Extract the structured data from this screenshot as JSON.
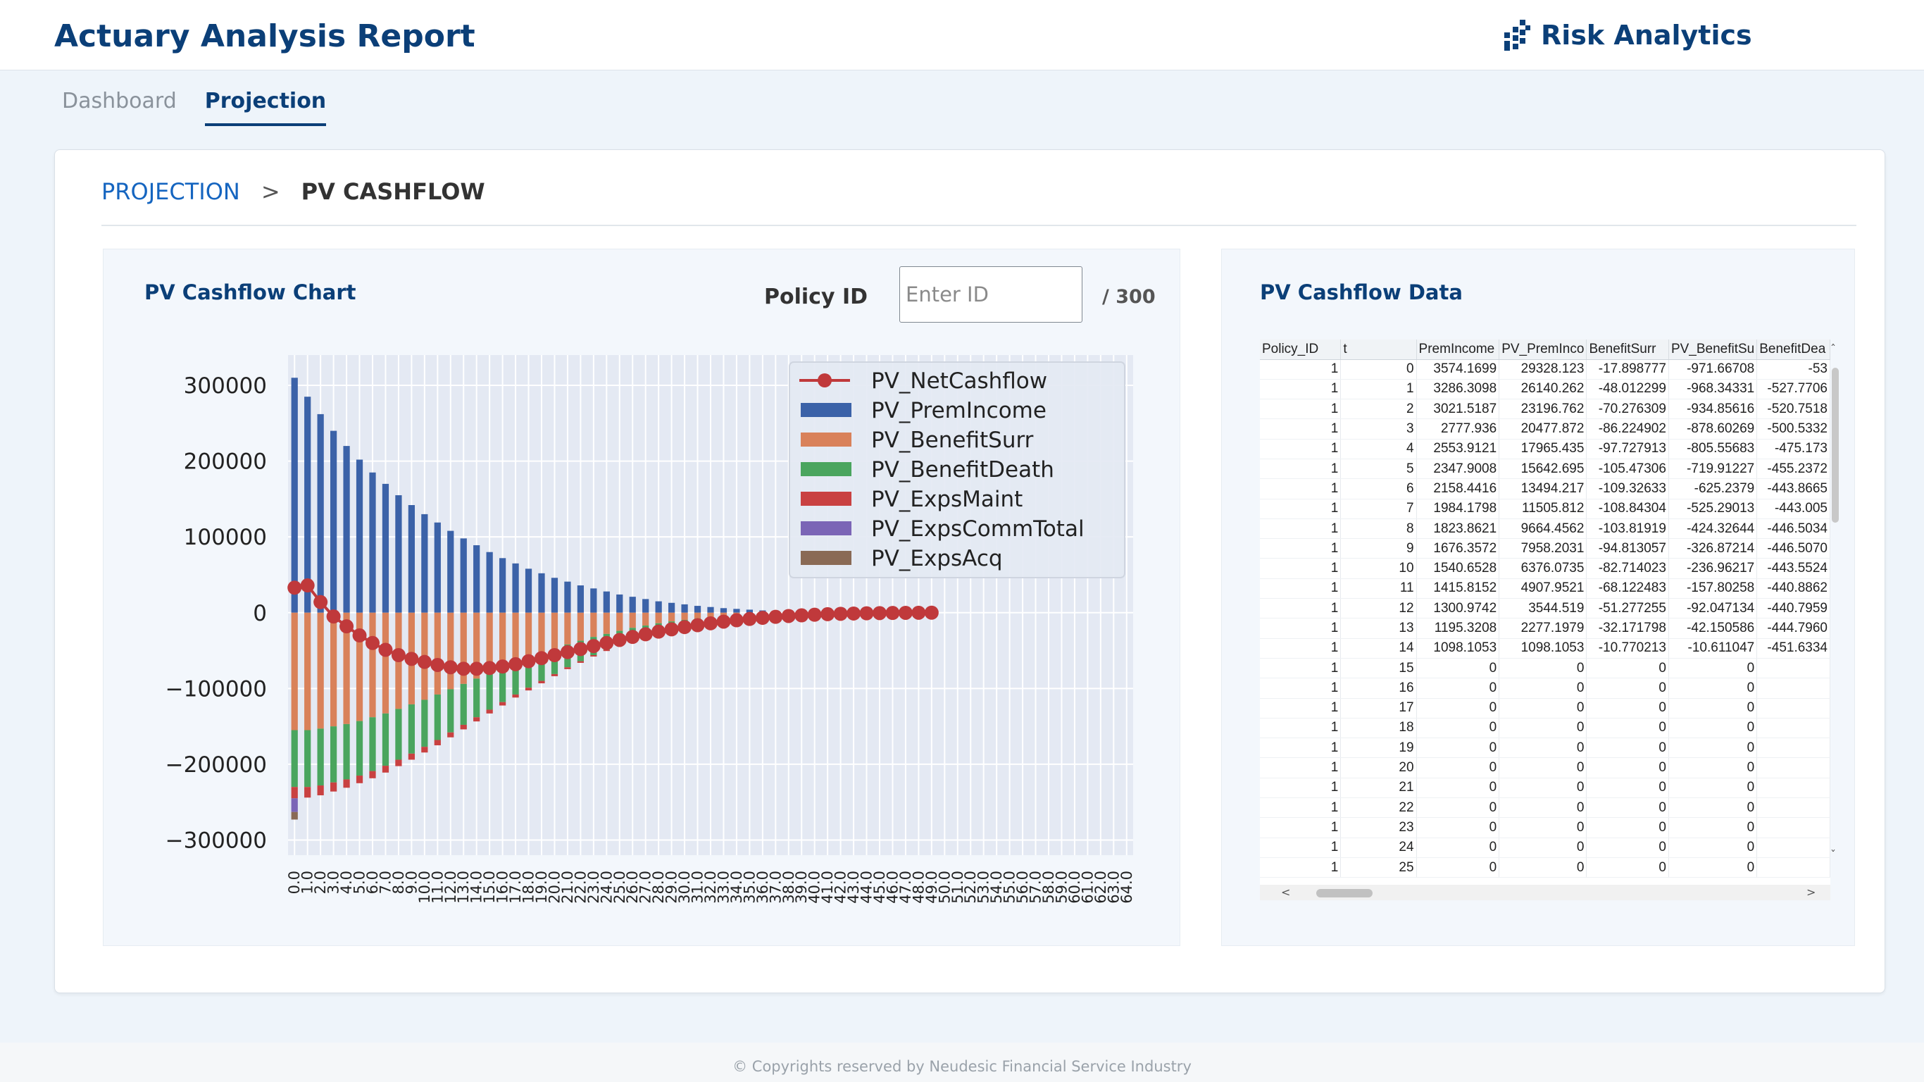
{
  "app": {
    "title": "Actuary Analysis Report",
    "brand": "Risk Analytics",
    "brand_icon": "grid-logo-icon"
  },
  "tabs": [
    {
      "label": "Dashboard",
      "active": false
    },
    {
      "label": "Projection",
      "active": true
    }
  ],
  "breadcrumb": {
    "parent": "PROJECTION",
    "separator": ">",
    "current": "PV CASHFLOW"
  },
  "chart_panel": {
    "title": "PV Cashflow Chart",
    "policy_label": "Policy ID",
    "policy_placeholder": "Enter ID",
    "policy_value": "",
    "policy_total": "/  300"
  },
  "data_panel": {
    "title": "PV Cashflow Data"
  },
  "table": {
    "columns": [
      "Policy_ID",
      "t",
      "PremIncome",
      "PV_PremInco",
      "BenefitSurr",
      "PV_BenefitSu",
      "BenefitDea"
    ],
    "rows": [
      [
        "1",
        "0",
        "3574.1699",
        "29328.123",
        "-17.898777",
        "-971.66708",
        "-53"
      ],
      [
        "1",
        "1",
        "3286.3098",
        "26140.262",
        "-48.012299",
        "-968.34331",
        "-527.7706"
      ],
      [
        "1",
        "2",
        "3021.5187",
        "23196.762",
        "-70.276309",
        "-934.85616",
        "-520.7518"
      ],
      [
        "1",
        "3",
        "2777.936",
        "20477.872",
        "-86.224902",
        "-878.60269",
        "-500.5332"
      ],
      [
        "1",
        "4",
        "2553.9121",
        "17965.435",
        "-97.727913",
        "-805.55683",
        "-475.173"
      ],
      [
        "1",
        "5",
        "2347.9008",
        "15642.695",
        "-105.47306",
        "-719.91227",
        "-455.2372"
      ],
      [
        "1",
        "6",
        "2158.4416",
        "13494.217",
        "-109.32633",
        "-625.2379",
        "-443.8665"
      ],
      [
        "1",
        "7",
        "1984.1798",
        "11505.812",
        "-108.84304",
        "-525.29013",
        "-443.005"
      ],
      [
        "1",
        "8",
        "1823.8621",
        "9664.4562",
        "-103.81919",
        "-424.32644",
        "-446.5034"
      ],
      [
        "1",
        "9",
        "1676.3572",
        "7958.2031",
        "-94.813057",
        "-326.87214",
        "-446.5070"
      ],
      [
        "1",
        "10",
        "1540.6528",
        "6376.0735",
        "-82.714023",
        "-236.96217",
        "-443.5524"
      ],
      [
        "1",
        "11",
        "1415.8152",
        "4907.9521",
        "-68.122483",
        "-157.80258",
        "-440.8862"
      ],
      [
        "1",
        "12",
        "1300.9742",
        "3544.519",
        "-51.277255",
        "-92.047134",
        "-440.7959"
      ],
      [
        "1",
        "13",
        "1195.3208",
        "2277.1979",
        "-32.171798",
        "-42.150586",
        "-444.7960"
      ],
      [
        "1",
        "14",
        "1098.1053",
        "1098.1053",
        "-10.770213",
        "-10.611047",
        "-451.6334"
      ],
      [
        "1",
        "15",
        "0",
        "0",
        "0",
        "0",
        ""
      ],
      [
        "1",
        "16",
        "0",
        "0",
        "0",
        "0",
        ""
      ],
      [
        "1",
        "17",
        "0",
        "0",
        "0",
        "0",
        ""
      ],
      [
        "1",
        "18",
        "0",
        "0",
        "0",
        "0",
        ""
      ],
      [
        "1",
        "19",
        "0",
        "0",
        "0",
        "0",
        ""
      ],
      [
        "1",
        "20",
        "0",
        "0",
        "0",
        "0",
        ""
      ],
      [
        "1",
        "21",
        "0",
        "0",
        "0",
        "0",
        ""
      ],
      [
        "1",
        "22",
        "0",
        "0",
        "0",
        "0",
        ""
      ],
      [
        "1",
        "23",
        "0",
        "0",
        "0",
        "0",
        ""
      ],
      [
        "1",
        "24",
        "0",
        "0",
        "0",
        "0",
        ""
      ],
      [
        "1",
        "25",
        "0",
        "0",
        "0",
        "0",
        ""
      ]
    ]
  },
  "chart_data": {
    "type": "bar",
    "stacked": true,
    "ylim": [
      -320000,
      340000
    ],
    "yticks": [
      300000,
      200000,
      100000,
      0,
      -100000,
      -200000,
      -300000
    ],
    "ytick_labels": [
      "300000",
      "200000",
      "100000",
      "0",
      "−100000",
      "−200000",
      "−300000"
    ],
    "x_count": 65,
    "x_labels": [
      "0.0",
      "1.0",
      "2.0",
      "3.0",
      "4.0",
      "5.0",
      "6.0",
      "7.0",
      "8.0",
      "9.0",
      "10.0",
      "11.0",
      "12.0",
      "13.0",
      "14.0",
      "15.0",
      "16.0",
      "17.0",
      "18.0",
      "19.0",
      "20.0",
      "21.0",
      "22.0",
      "23.0",
      "24.0",
      "25.0",
      "26.0",
      "27.0",
      "28.0",
      "29.0",
      "30.0",
      "31.0",
      "32.0",
      "33.0",
      "34.0",
      "35.0",
      "36.0",
      "37.0",
      "38.0",
      "39.0",
      "40.0",
      "41.0",
      "42.0",
      "43.0",
      "44.0",
      "45.0",
      "46.0",
      "47.0",
      "48.0",
      "49.0",
      "50.0",
      "51.0",
      "52.0",
      "53.0",
      "54.0",
      "55.0",
      "56.0",
      "57.0",
      "58.0",
      "59.0",
      "60.0",
      "61.0",
      "62.0",
      "63.0",
      "64.0"
    ],
    "legend_position": "top-right",
    "grid": true,
    "series": [
      {
        "name": "PV_PremIncome",
        "kind": "bar",
        "color": "#3b62a8",
        "values": [
          310000,
          285000,
          262000,
          240000,
          220000,
          202000,
          185000,
          170000,
          155000,
          142000,
          130000,
          119000,
          108000,
          98000,
          89000,
          80000,
          72000,
          65000,
          58000,
          52000,
          46000,
          41000,
          36000,
          32000,
          28000,
          24000,
          21000,
          18000,
          15000,
          13000,
          11000,
          9000,
          7500,
          6000,
          5000,
          4000,
          3000,
          2500,
          2000,
          1500,
          1000,
          800,
          600,
          400,
          300,
          200,
          150,
          100,
          80,
          50
        ]
      },
      {
        "name": "PV_BenefitSurr",
        "kind": "bar",
        "color": "#d9815a",
        "values": [
          -155000,
          -155000,
          -153000,
          -150000,
          -147000,
          -143000,
          -138000,
          -133000,
          -127000,
          -121000,
          -115000,
          -108000,
          -101000,
          -94000,
          -87000,
          -80000,
          -73000,
          -66000,
          -60000,
          -54000,
          -48000,
          -42000,
          -37000,
          -32000,
          -28000,
          -24000,
          -20000,
          -17000,
          -14000,
          -11500,
          -9500,
          -7500,
          -6000,
          -4800,
          -3800,
          -3000,
          -2300,
          -1700,
          -1300,
          -1000,
          -700,
          -500,
          -350,
          -250,
          -150,
          -100,
          -70,
          -50,
          -30,
          -20
        ]
      },
      {
        "name": "PV_BenefitDeath",
        "kind": "bar",
        "color": "#4aa55e",
        "values": [
          -75000,
          -75000,
          -75000,
          -74000,
          -73000,
          -72000,
          -71000,
          -69000,
          -67000,
          -65000,
          -62000,
          -60000,
          -57000,
          -54000,
          -51000,
          -48000,
          -45000,
          -42000,
          -39000,
          -36000,
          -33000,
          -30000,
          -27000,
          -24000,
          -21000,
          -18500,
          -16000,
          -14000,
          -12000,
          -10000,
          -8500,
          -7000,
          -5800,
          -4700,
          -3800,
          -3000,
          -2400,
          -1900,
          -1500,
          -1100,
          -800,
          -600,
          -450,
          -330,
          -230,
          -160,
          -110,
          -80,
          -50,
          -30
        ]
      },
      {
        "name": "PV_ExpsMaint",
        "kind": "bar",
        "color": "#c94141",
        "values": [
          -15000,
          -14000,
          -13000,
          -12000,
          -11000,
          -10000,
          -9500,
          -9000,
          -8500,
          -8000,
          -7500,
          -7000,
          -6500,
          -6000,
          -5500,
          -5000,
          -4500,
          -4000,
          -3600,
          -3200,
          -2800,
          -2500,
          -2200,
          -1900,
          -1600,
          -1400,
          -1200,
          -1000,
          -850,
          -700,
          -580,
          -470,
          -380,
          -300,
          -240,
          -190,
          -150,
          -110,
          -80,
          -60,
          -40,
          -30,
          -20,
          -15,
          -10,
          -8,
          -5,
          -3,
          -2,
          -1
        ]
      },
      {
        "name": "PV_ExpsCommTotal",
        "kind": "bar",
        "color": "#7b65b6",
        "values": [
          -18000
        ]
      },
      {
        "name": "PV_ExpsAcq",
        "kind": "bar",
        "color": "#8a6a55",
        "values": [
          -10000
        ]
      },
      {
        "name": "PV_NetCashflow",
        "kind": "line",
        "color": "#c0393b",
        "values": [
          33000,
          36000,
          14000,
          -5000,
          -18000,
          -30000,
          -40000,
          -49000,
          -56000,
          -61000,
          -65000,
          -69000,
          -72000,
          -74000,
          -74000,
          -73000,
          -71000,
          -68000,
          -64000,
          -60000,
          -56000,
          -52000,
          -48000,
          -44000,
          -40000,
          -36000,
          -32000,
          -28500,
          -25000,
          -22000,
          -19000,
          -16500,
          -14000,
          -11800,
          -10000,
          -8300,
          -6800,
          -5500,
          -4400,
          -3500,
          -2700,
          -2000,
          -1500,
          -1100,
          -800,
          -550,
          -350,
          -200,
          -100,
          0
        ]
      }
    ]
  },
  "footer": {
    "text": "© Copyrights reserved by Neudesic Financial Service Industry"
  }
}
